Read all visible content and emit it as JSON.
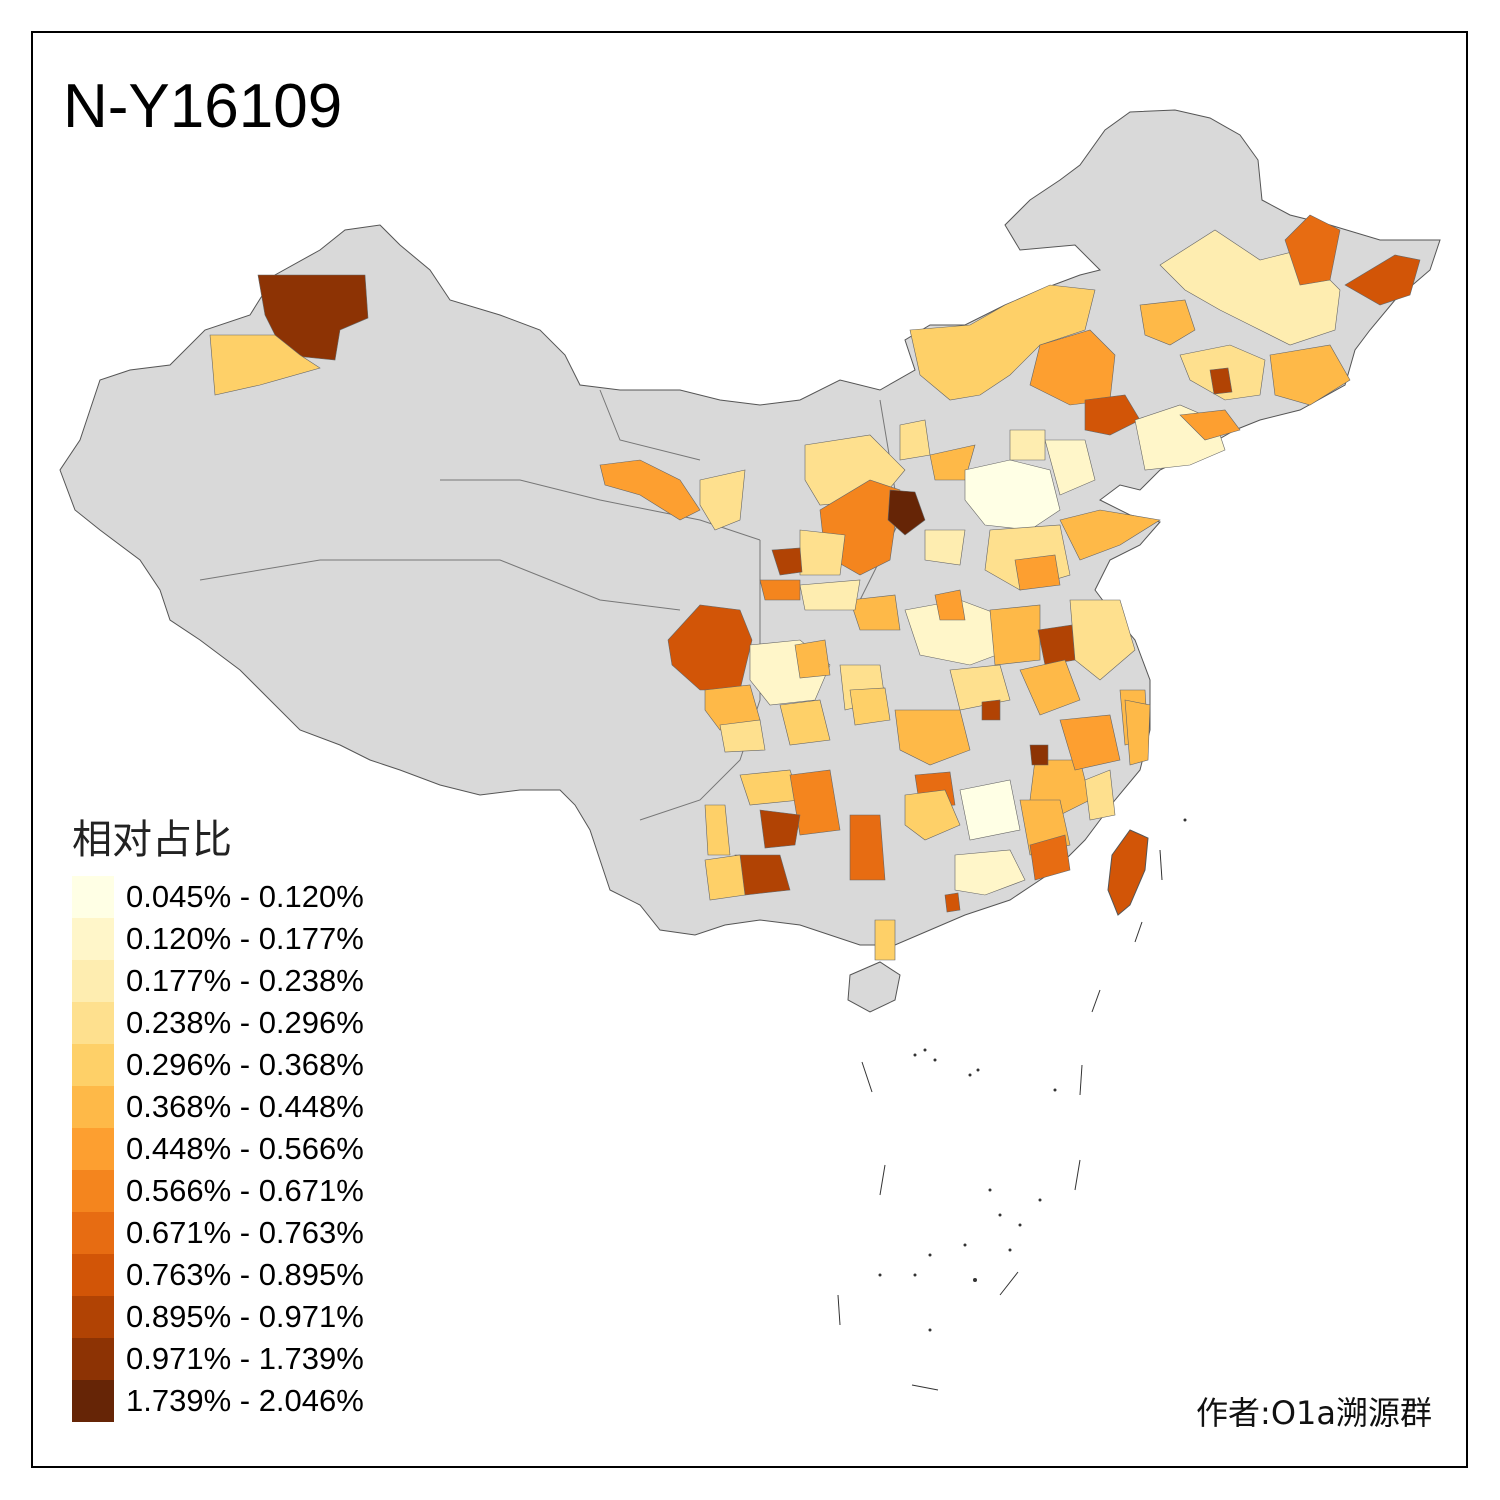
{
  "title": "N-Y16109",
  "legend": {
    "title": "相对占比",
    "items": [
      {
        "label": "0.045% - 0.120%",
        "color": "#FFFFE5"
      },
      {
        "label": "0.120% - 0.177%",
        "color": "#FFF6C9"
      },
      {
        "label": "0.177% - 0.238%",
        "color": "#FEEDB0"
      },
      {
        "label": "0.238% - 0.296%",
        "color": "#FEE08E"
      },
      {
        "label": "0.296% - 0.368%",
        "color": "#FED068"
      },
      {
        "label": "0.368% - 0.448%",
        "color": "#FEB948"
      },
      {
        "label": "0.448% - 0.566%",
        "color": "#FD9F30"
      },
      {
        "label": "0.566% - 0.671%",
        "color": "#F4851E"
      },
      {
        "label": "0.671% - 0.763%",
        "color": "#E76C12"
      },
      {
        "label": "0.763% - 0.895%",
        "color": "#D25507"
      },
      {
        "label": "0.895% - 0.971%",
        "color": "#B14304"
      },
      {
        "label": "0.971% - 1.739%",
        "color": "#8D3304"
      },
      {
        "label": "1.739% - 2.046%",
        "color": "#662506"
      }
    ]
  },
  "author": "作者:O1a溯源群",
  "nodata_color": "#D9D9D9"
}
